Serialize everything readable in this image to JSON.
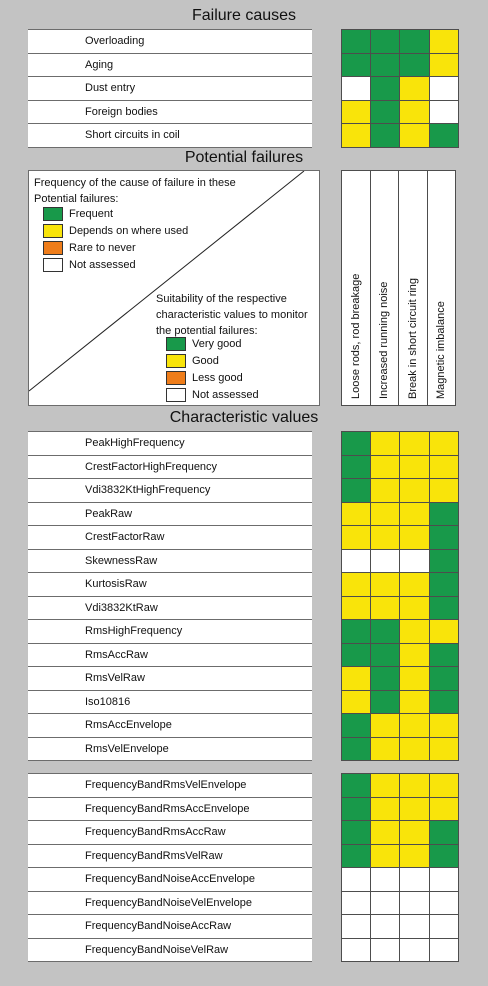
{
  "colors": {
    "G": "#18994a",
    "Y": "#f9e40a",
    "O": "#ef7d1a",
    "W": "#ffffff"
  },
  "headings": {
    "failure_causes": "Failure causes",
    "potential_failures": "Potential failures",
    "characteristic_values": "Characteristic values"
  },
  "failure_causes": [
    {
      "label": "Overloading",
      "cells": [
        "G",
        "G",
        "G",
        "Y"
      ]
    },
    {
      "label": "Aging",
      "cells": [
        "G",
        "G",
        "G",
        "Y"
      ]
    },
    {
      "label": "Dust entry",
      "cells": [
        "W",
        "G",
        "Y",
        "W"
      ]
    },
    {
      "label": "Foreign bodies",
      "cells": [
        "Y",
        "G",
        "Y",
        "W"
      ]
    },
    {
      "label": "Short circuits in coil",
      "cells": [
        "Y",
        "G",
        "Y",
        "G"
      ]
    }
  ],
  "legend": {
    "frequency_title": "Frequency of the cause of failure in these Potential failures:",
    "frequency_items": [
      {
        "label": "Frequent",
        "color": "G"
      },
      {
        "label": "Depends on where used",
        "color": "Y"
      },
      {
        "label": "Rare to never",
        "color": "O"
      },
      {
        "label": "Not assessed",
        "color": "W"
      }
    ],
    "suitability_title": "Suitability of the respective characteristic values to monitor the potential failures:",
    "suitability_items": [
      {
        "label": "Very good",
        "color": "G"
      },
      {
        "label": "Good",
        "color": "Y"
      },
      {
        "label": "Less good",
        "color": "O"
      },
      {
        "label": "Not assessed",
        "color": "W"
      }
    ]
  },
  "potential_failures": [
    "Loose rods, rod breakage",
    "Increased running noise",
    "Break in short circuit ring",
    "Magnetic imbalance"
  ],
  "characteristic_values_group1": [
    {
      "label": "PeakHighFrequency",
      "cells": [
        "G",
        "Y",
        "Y",
        "Y"
      ]
    },
    {
      "label": "CrestFactorHighFrequency",
      "cells": [
        "G",
        "Y",
        "Y",
        "Y"
      ]
    },
    {
      "label": "Vdi3832KtHighFrequency",
      "cells": [
        "G",
        "Y",
        "Y",
        "Y"
      ]
    },
    {
      "label": "PeakRaw",
      "cells": [
        "Y",
        "Y",
        "Y",
        "G"
      ]
    },
    {
      "label": "CrestFactorRaw",
      "cells": [
        "Y",
        "Y",
        "Y",
        "G"
      ]
    },
    {
      "label": "SkewnessRaw",
      "cells": [
        "W",
        "W",
        "W",
        "G"
      ]
    },
    {
      "label": "KurtosisRaw",
      "cells": [
        "Y",
        "Y",
        "Y",
        "G"
      ]
    },
    {
      "label": "Vdi3832KtRaw",
      "cells": [
        "Y",
        "Y",
        "Y",
        "G"
      ]
    },
    {
      "label": "RmsHighFrequency",
      "cells": [
        "G",
        "G",
        "Y",
        "Y"
      ]
    },
    {
      "label": "RmsAccRaw",
      "cells": [
        "G",
        "G",
        "Y",
        "G"
      ]
    },
    {
      "label": "RmsVelRaw",
      "cells": [
        "Y",
        "G",
        "Y",
        "G"
      ]
    },
    {
      "label": "Iso10816",
      "cells": [
        "Y",
        "G",
        "Y",
        "G"
      ]
    },
    {
      "label": "RmsAccEnvelope",
      "cells": [
        "G",
        "Y",
        "Y",
        "Y"
      ]
    },
    {
      "label": "RmsVelEnvelope",
      "cells": [
        "G",
        "Y",
        "Y",
        "Y"
      ]
    }
  ],
  "characteristic_values_group2": [
    {
      "label": "FrequencyBandRmsVelEnvelope",
      "cells": [
        "G",
        "Y",
        "Y",
        "Y"
      ]
    },
    {
      "label": "FrequencyBandRmsAccEnvelope",
      "cells": [
        "G",
        "Y",
        "Y",
        "Y"
      ]
    },
    {
      "label": "FrequencyBandRmsAccRaw",
      "cells": [
        "G",
        "Y",
        "Y",
        "G"
      ]
    },
    {
      "label": "FrequencyBandRmsVelRaw",
      "cells": [
        "G",
        "Y",
        "Y",
        "G"
      ]
    },
    {
      "label": "FrequencyBandNoiseAccEnvelope",
      "cells": [
        "W",
        "W",
        "W",
        "W"
      ]
    },
    {
      "label": "FrequencyBandNoiseVelEnvelope",
      "cells": [
        "W",
        "W",
        "W",
        "W"
      ]
    },
    {
      "label": "FrequencyBandNoiseAccRaw",
      "cells": [
        "W",
        "W",
        "W",
        "W"
      ]
    },
    {
      "label": "FrequencyBandNoiseVelRaw",
      "cells": [
        "W",
        "W",
        "W",
        "W"
      ]
    }
  ]
}
